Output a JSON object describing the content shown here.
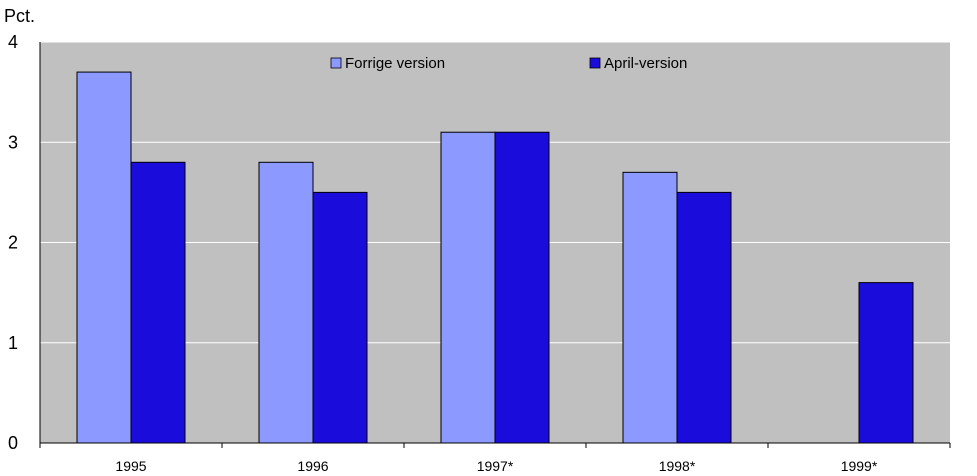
{
  "chart_data": {
    "type": "bar",
    "ylabel": "Pct.",
    "xlabel": "",
    "categories": [
      "1995",
      "1996",
      "1997*",
      "1998*",
      "1999*"
    ],
    "series": [
      {
        "name": "Forrige version",
        "color": "#8c99ff",
        "values": [
          3.7,
          2.8,
          3.1,
          2.7,
          null
        ]
      },
      {
        "name": "April-version",
        "color": "#1a0ddb",
        "values": [
          2.8,
          2.5,
          3.1,
          2.5,
          1.6
        ]
      }
    ],
    "ylim": [
      0,
      4
    ],
    "yticks": [
      "0",
      "1",
      "2",
      "3",
      "4"
    ],
    "grid": true,
    "plot_background": "#c0c0c0",
    "legend_position": "top-center"
  }
}
